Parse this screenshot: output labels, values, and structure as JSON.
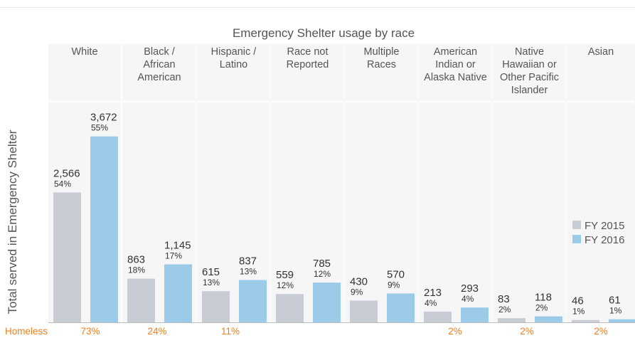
{
  "chart_data": {
    "type": "bar",
    "title": "Emergency Shelter usage by race",
    "ylabel": "Total served in Emergency Shelter",
    "xlabel": "",
    "ylim": [
      0,
      4300
    ],
    "grid": false,
    "legend_position": "right",
    "categories": [
      [
        "White"
      ],
      [
        "Black /",
        "African",
        "American"
      ],
      [
        "Hispanic /",
        "Latino"
      ],
      [
        "Race not",
        "Reported"
      ],
      [
        "Multiple",
        "Races"
      ],
      [
        "American",
        "Indian or",
        "Alaska Native"
      ],
      [
        "Native",
        "Hawaiian or",
        "Other Pacific",
        "Islander"
      ],
      [
        "Asian"
      ]
    ],
    "series": [
      {
        "name": "FY 2015",
        "color": "#c8cdd5",
        "values": [
          2566,
          863,
          615,
          559,
          430,
          213,
          83,
          46
        ],
        "value_labels": [
          "2,566",
          "863",
          "615",
          "559",
          "430",
          "213",
          "83",
          "46"
        ],
        "pct_labels": [
          "54%",
          "18%",
          "13%",
          "12%",
          "9%",
          "4%",
          "2%",
          "1%"
        ]
      },
      {
        "name": "FY 2016",
        "color": "#9ccbe9",
        "values": [
          3672,
          1145,
          837,
          785,
          570,
          293,
          118,
          61
        ],
        "value_labels": [
          "3,672",
          "1,145",
          "837",
          "785",
          "570",
          "293",
          "118",
          "61"
        ],
        "pct_labels": [
          "55%",
          "17%",
          "13%",
          "12%",
          "9%",
          "4%",
          "2%",
          "1%"
        ]
      }
    ],
    "footer": {
      "label": "Homeless",
      "values": [
        "73%",
        "24%",
        "11%",
        "",
        "",
        "2%",
        "2%",
        "2%"
      ]
    }
  }
}
